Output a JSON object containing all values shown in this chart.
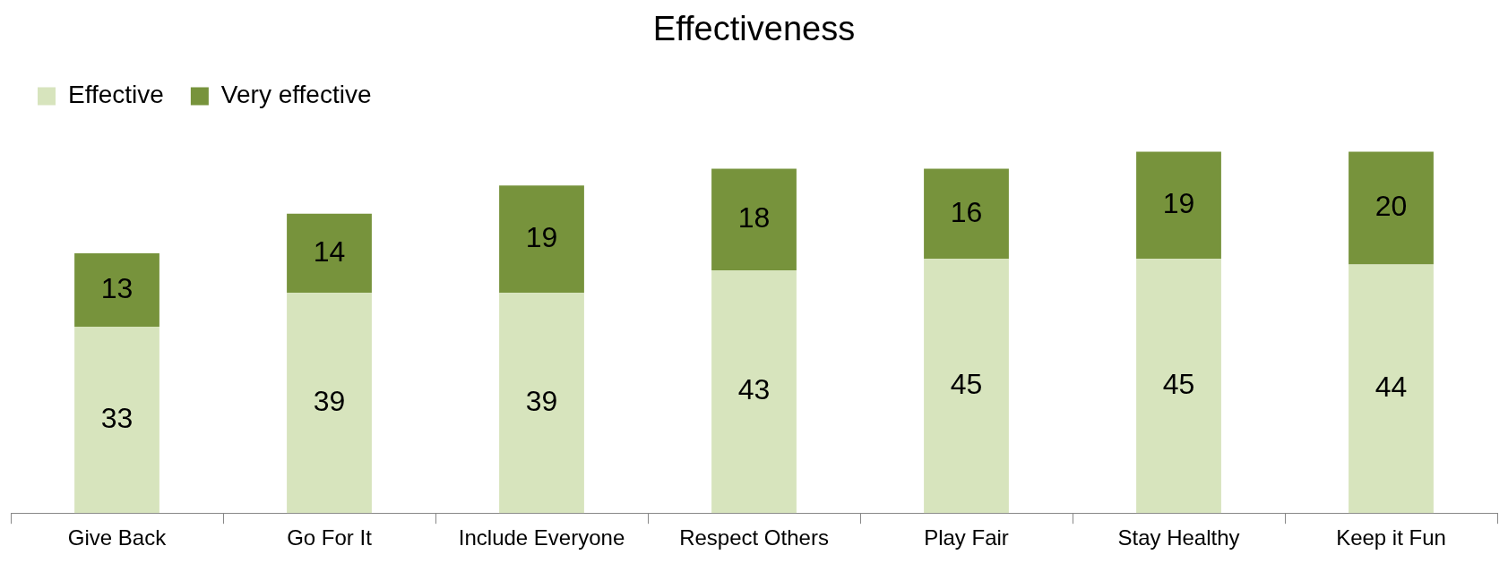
{
  "chart_data": {
    "type": "bar",
    "title": "Effectiveness",
    "stacked": true,
    "data_labels": true,
    "grid": false,
    "legend": "top left",
    "categories": [
      "Give Back",
      "Go For It",
      "Include Everyone",
      "Respect Others",
      "Play Fair",
      "Stay Healthy",
      "Keep it Fun"
    ],
    "series": [
      {
        "name": "Effective",
        "color": "#d7e4bd",
        "values": [
          33,
          39,
          39,
          43,
          45,
          45,
          44
        ]
      },
      {
        "name": "Very effective",
        "color": "#77933c",
        "values": [
          13,
          14,
          19,
          18,
          16,
          19,
          20
        ]
      }
    ]
  }
}
